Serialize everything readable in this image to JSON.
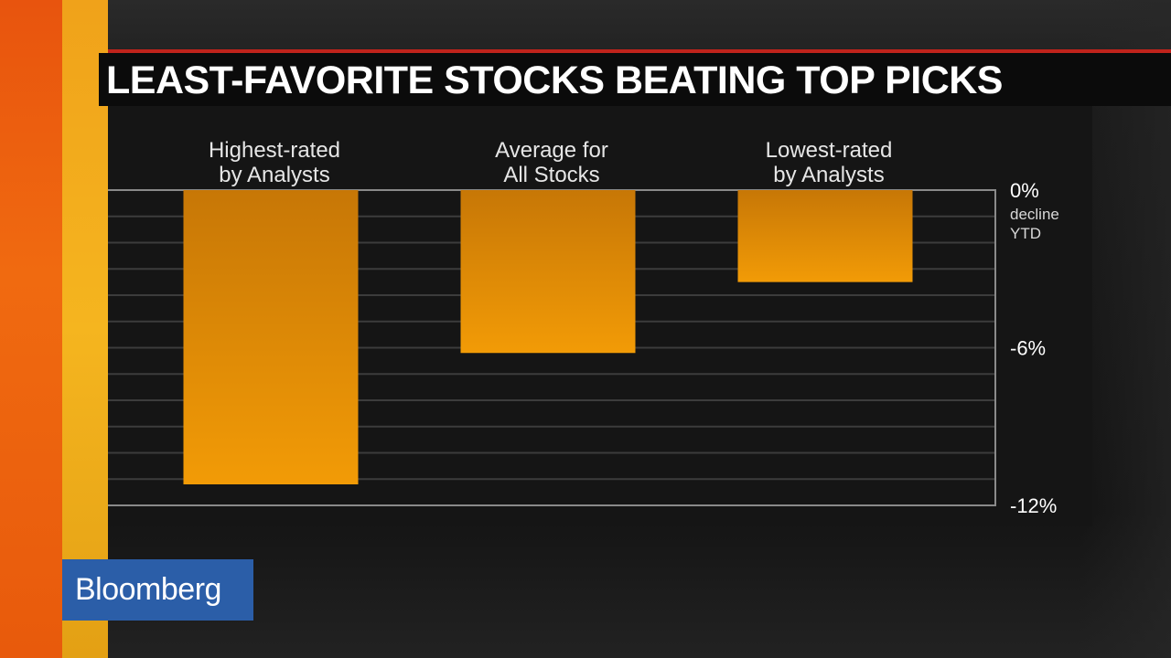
{
  "headline": "LEAST-FAVORITE STOCKS BEATING TOP PICKS",
  "brand": {
    "logo_text": "Bloomberg",
    "logo_color": "#2b5ea8"
  },
  "colors": {
    "bar_top": "#c77706",
    "bar_bottom": "#f29b06",
    "title_rule": "#c0231b",
    "stripe_orange": "#f06a10",
    "stripe_yellow": "#f5b51f"
  },
  "chart_data": {
    "type": "bar",
    "title": "LEAST-FAVORITE STOCKS BEATING TOP PICKS",
    "categories": [
      [
        "Highest-rated",
        "by Analysts"
      ],
      [
        "Average for",
        "All Stocks"
      ],
      [
        "Lowest-rated",
        "by Analysts"
      ]
    ],
    "values": [
      -11.2,
      -6.2,
      -3.5
    ],
    "ylim": [
      -12,
      0
    ],
    "yticks": [
      {
        "value": 0,
        "label": "0%"
      },
      {
        "value": -6,
        "label": "-6%"
      },
      {
        "value": -12,
        "label": "-12%"
      }
    ],
    "ylabel_lines": [
      "decline",
      "YTD"
    ],
    "grid": true,
    "grid_step": 1
  }
}
